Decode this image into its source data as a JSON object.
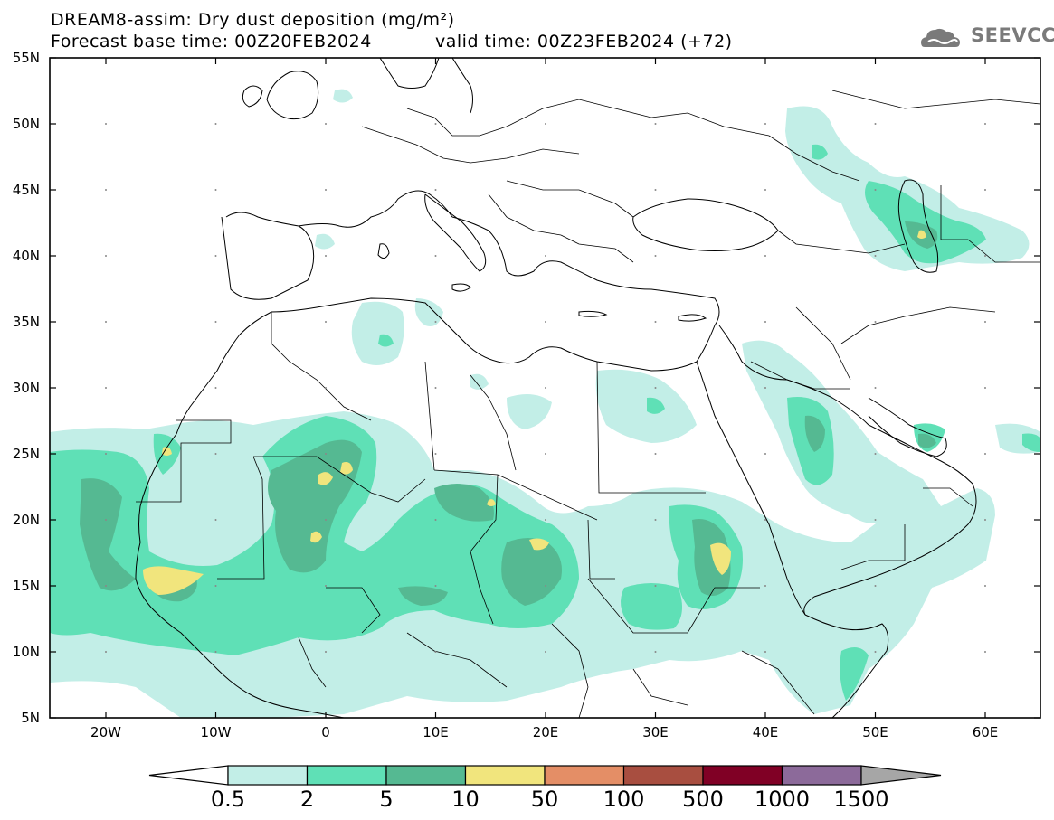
{
  "header": {
    "title_line1": "DREAM8-assim: Dry dust deposition (mg/m²)",
    "title_line2": "Forecast base time: 00Z20FEB2024",
    "valid_time": "valid time: 00Z23FEB2024 (+72)",
    "logo_text": "SEEVCCC"
  },
  "map": {
    "lat_labels": [
      "55N",
      "50N",
      "45N",
      "40N",
      "35N",
      "30N",
      "25N",
      "20N",
      "15N",
      "10N",
      "5N"
    ],
    "lon_labels": [
      "20W",
      "10W",
      "0",
      "10E",
      "20E",
      "30E",
      "40E",
      "50E",
      "60E"
    ]
  },
  "colorbar": {
    "labels": [
      "0.5",
      "2",
      "5",
      "10",
      "50",
      "100",
      "500",
      "1000",
      "1500"
    ],
    "colors": [
      "#c2eee7",
      "#5fe0b6",
      "#55b992",
      "#f1e57d",
      "#e48e66",
      "#a84e40",
      "#800025",
      "#8c6a9a"
    ],
    "extend_low_color": "#ffffff",
    "extend_high_color": "#a6a6a6"
  }
}
